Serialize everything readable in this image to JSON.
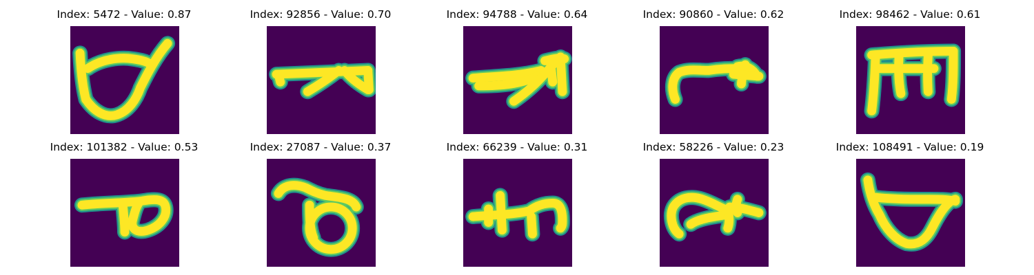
{
  "colors": {
    "background": "#440154",
    "stroke_core": "#fde725",
    "stroke_edge": "#5ec962",
    "stroke_fringe": "#21918c"
  },
  "panels": [
    {
      "title": "Index: 5472 - Value: 0.87"
    },
    {
      "title": "Index: 92856 - Value: 0.70"
    },
    {
      "title": "Index: 94788 - Value: 0.64"
    },
    {
      "title": "Index: 90860 - Value: 0.62"
    },
    {
      "title": "Index: 98462 - Value: 0.61"
    },
    {
      "title": "Index: 101382 - Value: 0.53"
    },
    {
      "title": "Index: 27087 - Value: 0.37"
    },
    {
      "title": "Index: 66239 - Value: 0.31"
    },
    {
      "title": "Index: 58226 - Value: 0.23"
    },
    {
      "title": "Index: 108491 - Value: 0.19"
    }
  ]
}
